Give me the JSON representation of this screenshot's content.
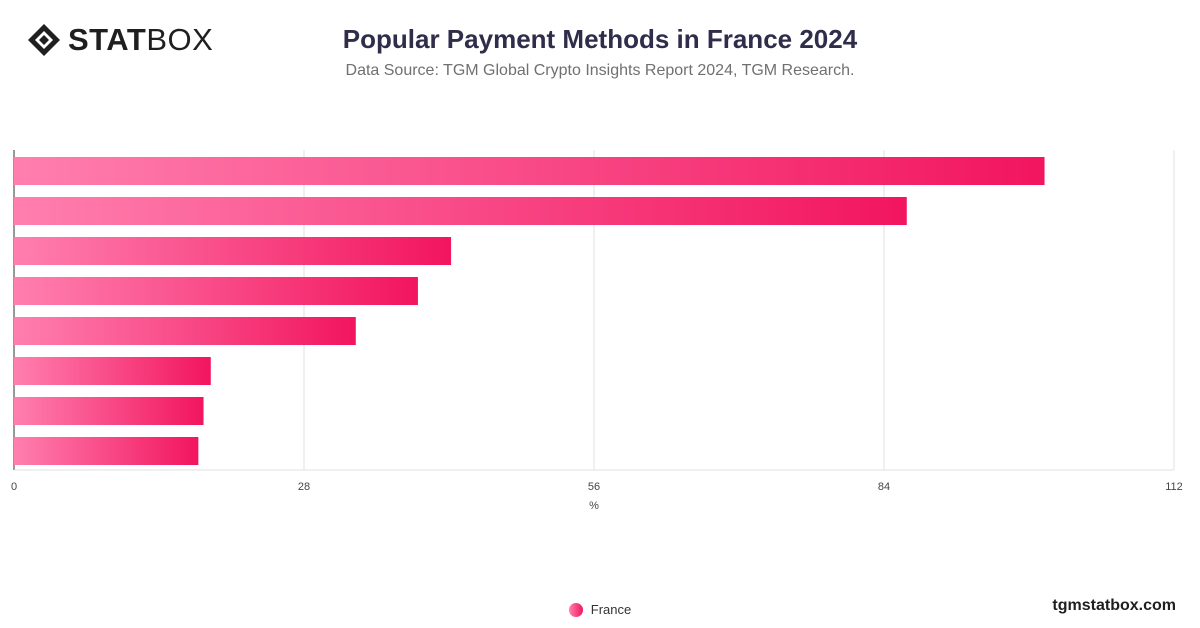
{
  "brand": {
    "logo_bold": "STAT",
    "logo_light": "BOX",
    "watermark": "tgmstatbox.com"
  },
  "header": {
    "title": "Popular Payment Methods in France 2024",
    "subtitle": "Data Source: TGM Global Crypto Insights Report 2024, TGM Research."
  },
  "colors": {
    "bar_start": "#ff7fae",
    "bar_end": "#f2155f",
    "grid": "#e2e2e2",
    "axis": "#333333"
  },
  "chart_data": {
    "type": "bar",
    "orientation": "horizontal",
    "categories": [
      "",
      "",
      "",
      "",
      "",
      "",
      "",
      ""
    ],
    "series": [
      {
        "name": "France",
        "values": [
          99.5,
          86.2,
          42.2,
          39.0,
          33.0,
          19.0,
          18.3,
          17.8
        ]
      }
    ],
    "xlabel": "%",
    "ylabel": "",
    "xlim": [
      0,
      112
    ],
    "xticks": [
      "0",
      "28",
      "56",
      "84",
      "112"
    ],
    "tick_values": [
      0,
      28,
      56,
      84,
      112
    ],
    "grid": true,
    "legend": "bottom-center"
  }
}
